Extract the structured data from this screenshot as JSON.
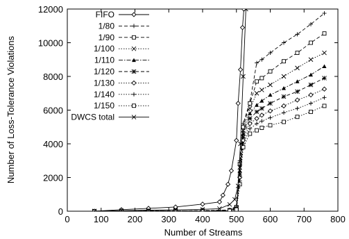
{
  "chart_data": {
    "type": "line",
    "title": "",
    "xlabel": "Number of Streams",
    "ylabel": "Number of Loss-Tolerance Violations",
    "xlim": [
      0,
      800
    ],
    "ylim": [
      0,
      12000
    ],
    "xticks": [
      0,
      100,
      200,
      300,
      400,
      500,
      600,
      700,
      800
    ],
    "yticks": [
      0,
      2000,
      4000,
      6000,
      8000,
      10000,
      12000
    ],
    "grid": false,
    "legend_position": "top-left (inside)",
    "series": [
      {
        "name": "FIFO",
        "marker": "diamond-open",
        "dash": "solid",
        "points": [
          [
            80,
            0
          ],
          [
            160,
            90
          ],
          [
            240,
            170
          ],
          [
            320,
            250
          ],
          [
            400,
            420
          ],
          [
            450,
            550
          ],
          [
            460,
            950
          ],
          [
            475,
            1600
          ],
          [
            485,
            2400
          ],
          [
            500,
            4200
          ],
          [
            505,
            6400
          ],
          [
            512,
            8400
          ],
          [
            518,
            10900
          ],
          [
            522,
            12000
          ]
        ]
      },
      {
        "name": "1/80",
        "marker": "plus",
        "dash": "dashed",
        "points": [
          [
            80,
            0
          ],
          [
            160,
            10
          ],
          [
            240,
            15
          ],
          [
            320,
            20
          ],
          [
            400,
            30
          ],
          [
            480,
            80
          ],
          [
            500,
            300
          ],
          [
            510,
            3000
          ],
          [
            520,
            5200
          ],
          [
            540,
            6500
          ],
          [
            560,
            8800
          ],
          [
            575,
            9000
          ],
          [
            600,
            9400
          ],
          [
            640,
            10000
          ],
          [
            680,
            10500
          ],
          [
            720,
            11100
          ],
          [
            760,
            11750
          ]
        ]
      },
      {
        "name": "1/90",
        "marker": "square-open",
        "dash": "dashed",
        "points": [
          [
            80,
            0
          ],
          [
            160,
            10
          ],
          [
            240,
            15
          ],
          [
            320,
            20
          ],
          [
            400,
            30
          ],
          [
            480,
            60
          ],
          [
            500,
            250
          ],
          [
            510,
            2800
          ],
          [
            520,
            5000
          ],
          [
            540,
            6400
          ],
          [
            560,
            7700
          ],
          [
            575,
            7900
          ],
          [
            600,
            8300
          ],
          [
            640,
            8900
          ],
          [
            680,
            9400
          ],
          [
            720,
            10000
          ],
          [
            760,
            10550
          ]
        ]
      },
      {
        "name": "1/100",
        "marker": "x",
        "dash": "dotted",
        "points": [
          [
            80,
            0
          ],
          [
            160,
            8
          ],
          [
            240,
            12
          ],
          [
            320,
            18
          ],
          [
            400,
            25
          ],
          [
            480,
            50
          ],
          [
            500,
            200
          ],
          [
            510,
            2600
          ],
          [
            520,
            4800
          ],
          [
            540,
            6100
          ],
          [
            560,
            7000
          ],
          [
            575,
            7200
          ],
          [
            600,
            7500
          ],
          [
            640,
            8000
          ],
          [
            680,
            8500
          ],
          [
            720,
            9000
          ],
          [
            760,
            9400
          ]
        ]
      },
      {
        "name": "1/110",
        "marker": "triangle",
        "dash": "dashdot",
        "points": [
          [
            80,
            0
          ],
          [
            160,
            8
          ],
          [
            240,
            12
          ],
          [
            320,
            16
          ],
          [
            400,
            22
          ],
          [
            480,
            45
          ],
          [
            500,
            180
          ],
          [
            510,
            2400
          ],
          [
            520,
            4600
          ],
          [
            540,
            5800
          ],
          [
            560,
            6300
          ],
          [
            575,
            6550
          ],
          [
            600,
            6900
          ],
          [
            640,
            7300
          ],
          [
            680,
            7700
          ],
          [
            720,
            8100
          ],
          [
            760,
            8600
          ]
        ]
      },
      {
        "name": "1/120",
        "marker": "asterisk",
        "dash": "dashed",
        "points": [
          [
            80,
            0
          ],
          [
            160,
            6
          ],
          [
            240,
            10
          ],
          [
            320,
            15
          ],
          [
            400,
            20
          ],
          [
            480,
            40
          ],
          [
            500,
            160
          ],
          [
            510,
            2200
          ],
          [
            520,
            4400
          ],
          [
            540,
            5500
          ],
          [
            560,
            5900
          ],
          [
            575,
            6100
          ],
          [
            600,
            6400
          ],
          [
            640,
            6800
          ],
          [
            680,
            7100
          ],
          [
            720,
            7500
          ],
          [
            760,
            7900
          ]
        ]
      },
      {
        "name": "1/130",
        "marker": "diamond-open",
        "dash": "dotted",
        "points": [
          [
            80,
            0
          ],
          [
            160,
            6
          ],
          [
            240,
            10
          ],
          [
            320,
            14
          ],
          [
            400,
            18
          ],
          [
            480,
            35
          ],
          [
            500,
            140
          ],
          [
            510,
            2000
          ],
          [
            520,
            4200
          ],
          [
            540,
            5200
          ],
          [
            560,
            5500
          ],
          [
            575,
            5700
          ],
          [
            600,
            5950
          ],
          [
            640,
            6250
          ],
          [
            680,
            6600
          ],
          [
            720,
            6900
          ],
          [
            760,
            7250
          ]
        ]
      },
      {
        "name": "1/140",
        "marker": "plus",
        "dash": "dotted",
        "points": [
          [
            80,
            0
          ],
          [
            160,
            5
          ],
          [
            240,
            8
          ],
          [
            320,
            12
          ],
          [
            400,
            16
          ],
          [
            480,
            30
          ],
          [
            500,
            120
          ],
          [
            510,
            1800
          ],
          [
            520,
            4000
          ],
          [
            540,
            4900
          ],
          [
            560,
            5200
          ],
          [
            575,
            5350
          ],
          [
            600,
            5550
          ],
          [
            640,
            5850
          ],
          [
            680,
            6100
          ],
          [
            720,
            6400
          ],
          [
            760,
            6750
          ]
        ]
      },
      {
        "name": "1/150",
        "marker": "square-open",
        "dash": "dotted",
        "points": [
          [
            80,
            0
          ],
          [
            160,
            5
          ],
          [
            240,
            8
          ],
          [
            320,
            10
          ],
          [
            400,
            14
          ],
          [
            480,
            25
          ],
          [
            500,
            100
          ],
          [
            510,
            1600
          ],
          [
            520,
            3800
          ],
          [
            540,
            4600
          ],
          [
            560,
            4800
          ],
          [
            575,
            4950
          ],
          [
            600,
            5100
          ],
          [
            640,
            5300
          ],
          [
            680,
            5600
          ],
          [
            720,
            5900
          ],
          [
            760,
            6250
          ]
        ]
      },
      {
        "name": "DWCS total",
        "marker": "x",
        "dash": "solid",
        "points": [
          [
            80,
            10
          ],
          [
            160,
            30
          ],
          [
            240,
            60
          ],
          [
            320,
            80
          ],
          [
            400,
            110
          ],
          [
            450,
            150
          ],
          [
            480,
            400
          ],
          [
            495,
            700
          ],
          [
            505,
            1500
          ],
          [
            512,
            4000
          ],
          [
            520,
            8000
          ],
          [
            528,
            12000
          ]
        ]
      }
    ]
  }
}
